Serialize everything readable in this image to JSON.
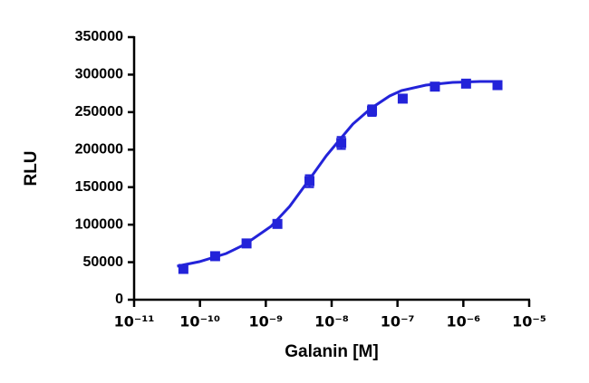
{
  "chart_data": {
    "type": "scatter",
    "x_label": "Galanin [M]",
    "y_label": "RLU",
    "xscale": "log",
    "xlim": [
      1e-11,
      1e-05
    ],
    "xticks": [
      {
        "value": 1e-11,
        "label": "10⁻¹¹"
      },
      {
        "value": 1e-10,
        "label": "10⁻¹⁰"
      },
      {
        "value": 1e-09,
        "label": "10⁻⁹"
      },
      {
        "value": 1e-08,
        "label": "10⁻⁸"
      },
      {
        "value": 1e-07,
        "label": "10⁻⁷"
      },
      {
        "value": 1e-06,
        "label": "10⁻⁶"
      },
      {
        "value": 1e-05,
        "label": "10⁻⁵"
      }
    ],
    "ylim": [
      0,
      350000
    ],
    "yticks": [
      0,
      50000,
      100000,
      150000,
      200000,
      250000,
      300000,
      350000
    ],
    "color": "#2323d9",
    "x": [
      5.6e-11,
      1.7e-10,
      5.1e-10,
      1.5e-09,
      4.6e-09,
      1.4e-08,
      4.1e-08,
      1.2e-07,
      3.7e-07,
      1.1e-06,
      3.3e-06
    ],
    "values": [
      41000,
      58000,
      75000,
      101000,
      158000,
      209000,
      252000,
      268000,
      284000,
      288000,
      286000
    ],
    "errors": [
      2000,
      2000,
      2000,
      2000,
      8000,
      8000,
      7000,
      4000,
      5000,
      2000,
      2000
    ],
    "curve": {
      "x": [
        4.5e-11,
        9.8e-11,
        2.5e-10,
        4.8e-10,
        1.2e-09,
        2.3e-09,
        4.4e-09,
        8.3e-09,
        1.3e-08,
        2.1e-08,
        3.9e-08,
        7.6e-08,
        1.15e-07,
        2.7e-07,
        6.9e-07,
        1.8e-06,
        3.7e-06
      ],
      "values": [
        44700,
        50700,
        61600,
        73600,
        97800,
        124300,
        158100,
        191900,
        212400,
        234100,
        254700,
        271600,
        278800,
        286000,
        289700,
        290900,
        290900
      ]
    }
  }
}
